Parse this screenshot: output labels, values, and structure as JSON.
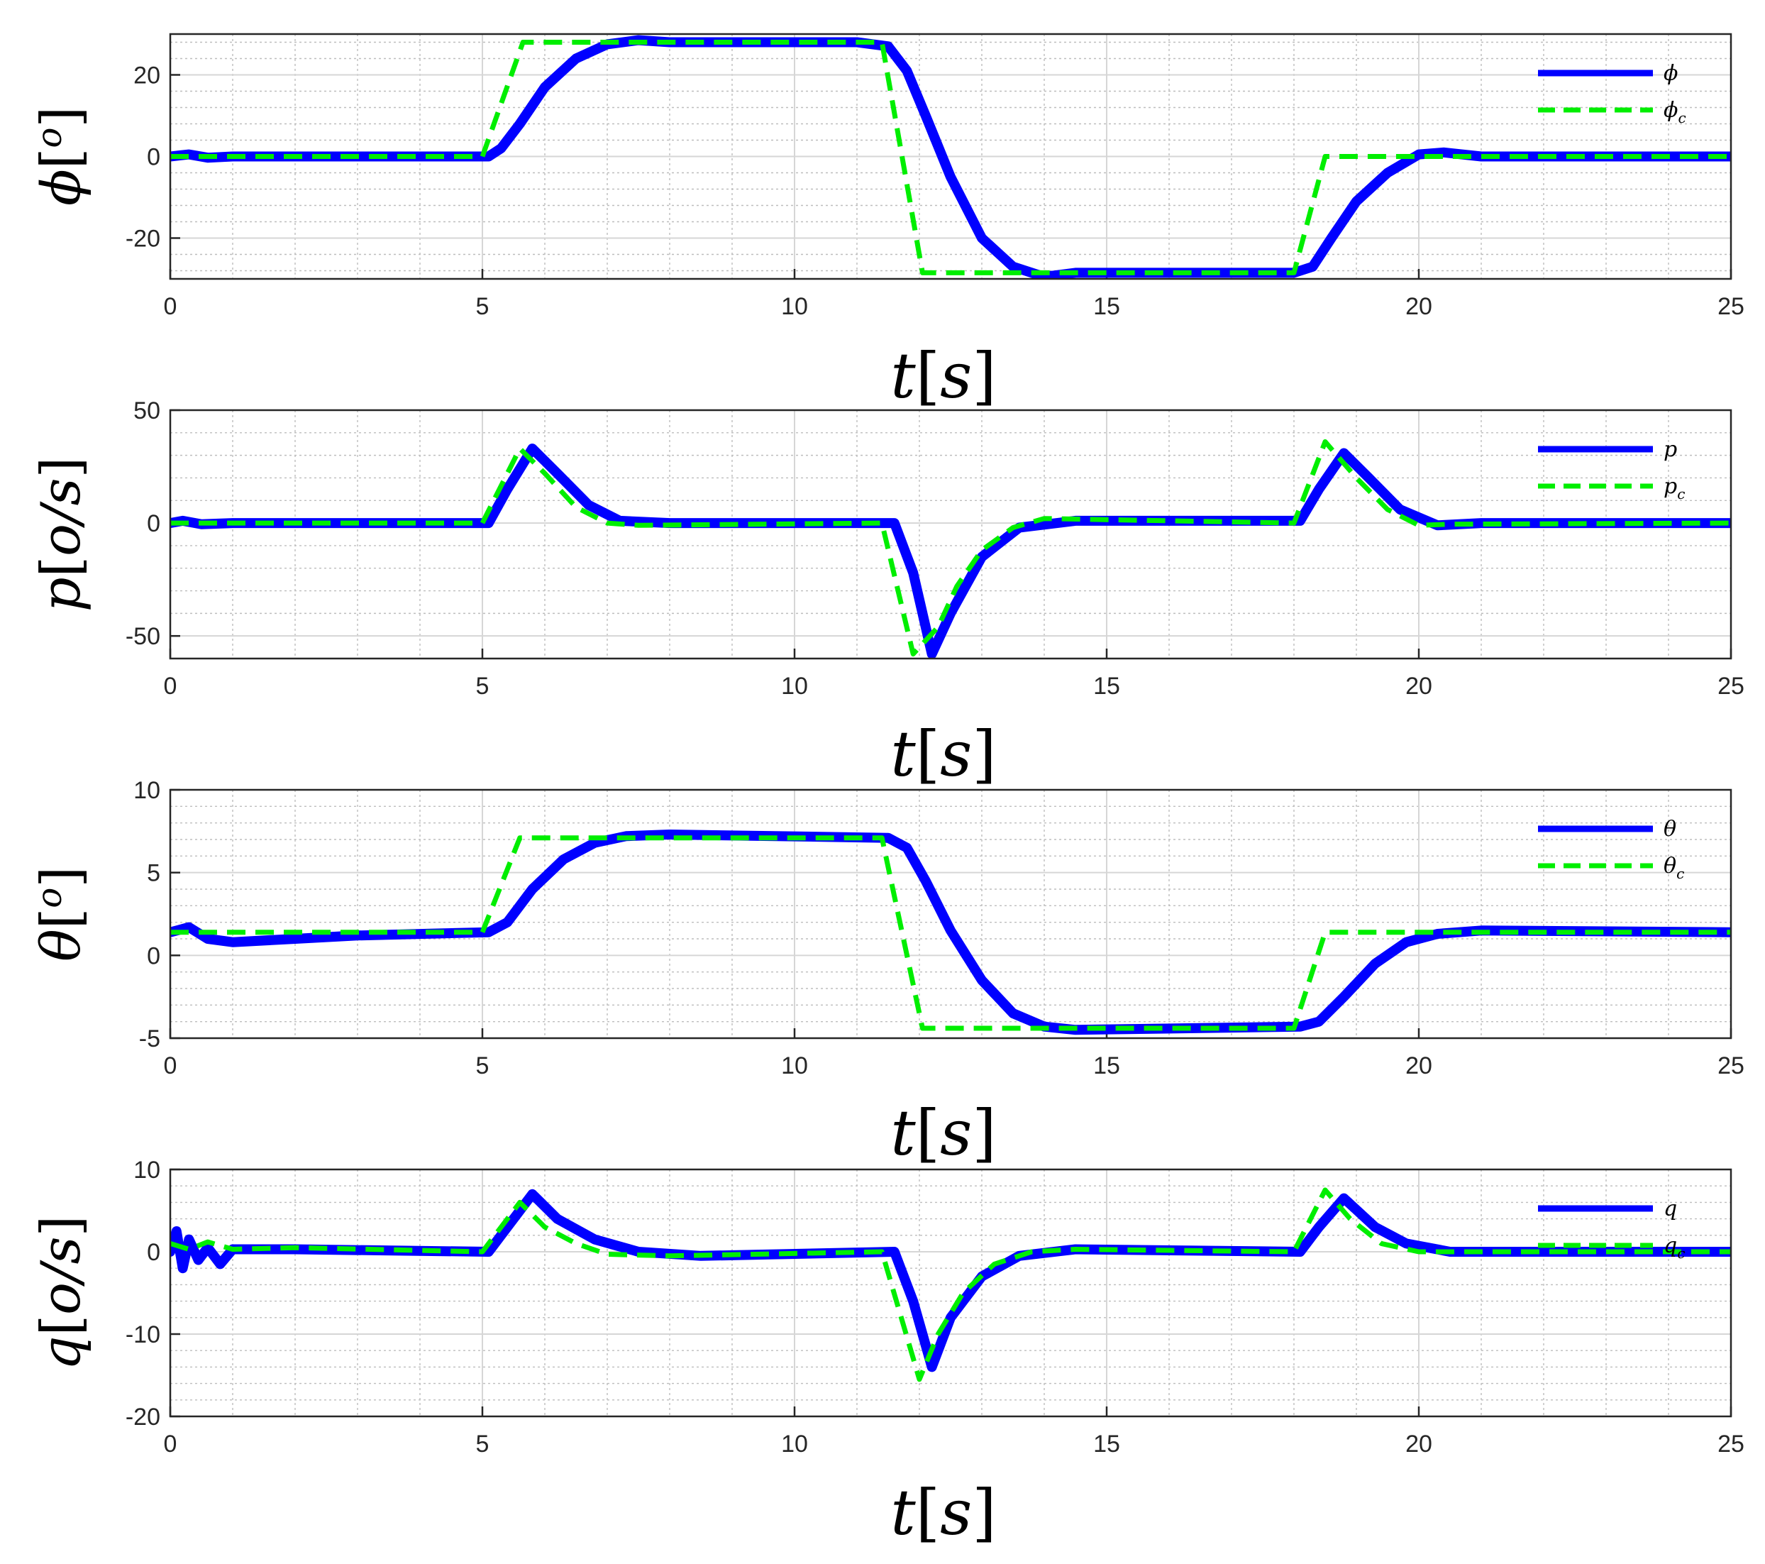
{
  "colors": {
    "measured": "#0000ff",
    "command": "#00ee00",
    "grid_major": "#d6d6d6",
    "grid_minor": "#bdbdbd",
    "axis": "#262626"
  },
  "chart_data": [
    {
      "type": "line",
      "xlabel": {
        "var": "t",
        "unit": "s"
      },
      "ylabel": {
        "var": "ϕ",
        "unit": "o"
      },
      "xlim": [
        0,
        25
      ],
      "ylim": [
        -30,
        30
      ],
      "xticks": [
        "0",
        "5",
        "10",
        "15",
        "20",
        "25"
      ],
      "yticks": [
        "-20",
        "0",
        "20"
      ],
      "ytick_values": [
        -20,
        0,
        20
      ],
      "grid": true,
      "minor_grid": true,
      "legend_position": "top-right",
      "series": [
        {
          "name": "ϕ",
          "sub": "",
          "style": "solid",
          "width": 14,
          "x": [
            0,
            0.3,
            0.6,
            1,
            5.1,
            5.3,
            5.6,
            6.0,
            6.5,
            7.0,
            7.5,
            8,
            11,
            11.5,
            11.8,
            12.1,
            12.5,
            13.0,
            13.5,
            14.0,
            14.5,
            18,
            18.3,
            18.6,
            19.0,
            19.5,
            20.0,
            20.4,
            21.0,
            25
          ],
          "y": [
            0,
            0.5,
            -0.3,
            0,
            0,
            2,
            8,
            17,
            24,
            27.5,
            28.5,
            28,
            28,
            27,
            21,
            10,
            -5,
            -20,
            -27,
            -29.5,
            -28.5,
            -28.5,
            -27,
            -20,
            -11,
            -4,
            0.5,
            1,
            0,
            0
          ]
        },
        {
          "name": "ϕ",
          "sub": "c",
          "style": "dashed",
          "width": 7,
          "x": [
            0,
            5,
            5.65,
            11.4,
            12.05,
            18.0,
            18.5,
            25
          ],
          "y": [
            0,
            0,
            28,
            28,
            -28.5,
            -28.5,
            0,
            0
          ]
        }
      ]
    },
    {
      "type": "line",
      "xlabel": {
        "var": "t",
        "unit": "s"
      },
      "ylabel": {
        "var": "p",
        "unit": "o/s"
      },
      "xlim": [
        0,
        25
      ],
      "ylim": [
        -60,
        50
      ],
      "xticks": [
        "0",
        "5",
        "10",
        "15",
        "20",
        "25"
      ],
      "yticks": [
        "-50",
        "0",
        "50"
      ],
      "ytick_values": [
        -50,
        0,
        50
      ],
      "grid": true,
      "minor_grid": true,
      "legend_position": "top-right",
      "series": [
        {
          "name": "p",
          "sub": "",
          "style": "solid",
          "width": 14,
          "x": [
            0,
            0.2,
            0.5,
            1,
            5.1,
            5.4,
            5.8,
            6.2,
            6.7,
            7.2,
            8.0,
            11.6,
            11.9,
            12.2,
            12.5,
            13.0,
            13.6,
            14.5,
            18.1,
            18.4,
            18.8,
            19.2,
            19.7,
            20.3,
            21,
            25
          ],
          "y": [
            0,
            1,
            -0.5,
            0,
            0,
            15,
            33,
            22,
            8,
            1,
            0,
            0,
            -22,
            -58,
            -40,
            -15,
            -2,
            1,
            1,
            15,
            31,
            20,
            6,
            -1,
            0,
            0
          ]
        },
        {
          "name": "p",
          "sub": "c",
          "style": "dashed",
          "width": 7,
          "x": [
            0,
            5,
            5.6,
            6.0,
            6.5,
            7.0,
            7.5,
            11.4,
            11.9,
            12.3,
            12.6,
            13.0,
            13.5,
            14.0,
            18.0,
            18.5,
            19.0,
            19.5,
            20.0,
            20.5,
            25
          ],
          "y": [
            0,
            0,
            33,
            22,
            7,
            0,
            -1,
            0,
            -58,
            -46,
            -28,
            -12,
            -2,
            2,
            0,
            36,
            20,
            6,
            -1,
            -0.5,
            0
          ]
        }
      ]
    },
    {
      "type": "line",
      "xlabel": {
        "var": "t",
        "unit": "s"
      },
      "ylabel": {
        "var": "θ",
        "unit": "o"
      },
      "xlim": [
        0,
        25
      ],
      "ylim": [
        -5,
        10
      ],
      "xticks": [
        "0",
        "5",
        "10",
        "15",
        "20",
        "25"
      ],
      "yticks": [
        "-5",
        "0",
        "5",
        "10"
      ],
      "ytick_values": [
        -5,
        0,
        5,
        10
      ],
      "grid": true,
      "minor_grid": true,
      "legend_position": "top-right",
      "series": [
        {
          "name": "θ",
          "sub": "",
          "style": "solid",
          "width": 14,
          "x": [
            0,
            0.3,
            0.6,
            1,
            2,
            3,
            5.1,
            5.4,
            5.8,
            6.3,
            6.8,
            7.3,
            8,
            11.5,
            11.8,
            12.1,
            12.5,
            13.0,
            13.5,
            14.0,
            14.5,
            18.1,
            18.4,
            18.8,
            19.3,
            19.8,
            20.3,
            21,
            25
          ],
          "y": [
            1.4,
            1.7,
            1.0,
            0.8,
            1.0,
            1.2,
            1.4,
            2,
            4,
            5.8,
            6.8,
            7.2,
            7.3,
            7.1,
            6.5,
            4.5,
            1.5,
            -1.5,
            -3.5,
            -4.3,
            -4.5,
            -4.3,
            -4,
            -2.5,
            -0.5,
            0.8,
            1.3,
            1.5,
            1.4
          ]
        },
        {
          "name": "θ",
          "sub": "c",
          "style": "dashed",
          "width": 7,
          "x": [
            0,
            5,
            5.6,
            11.4,
            12.05,
            18.0,
            18.5,
            25
          ],
          "y": [
            1.4,
            1.4,
            7.1,
            7.1,
            -4.4,
            -4.4,
            1.4,
            1.4
          ]
        }
      ]
    },
    {
      "type": "line",
      "xlabel": {
        "var": "t",
        "unit": "s"
      },
      "ylabel": {
        "var": "q",
        "unit": "o/s"
      },
      "xlim": [
        0,
        25
      ],
      "ylim": [
        -20,
        10
      ],
      "xticks": [
        "0",
        "5",
        "10",
        "15",
        "20",
        "25"
      ],
      "yticks": [
        "-20",
        "-10",
        "0",
        "10"
      ],
      "ytick_values": [
        -20,
        -10,
        0,
        10
      ],
      "grid": true,
      "minor_grid": true,
      "legend_position": "top-right",
      "series": [
        {
          "name": "q",
          "sub": "",
          "style": "solid",
          "width": 14,
          "x": [
            0,
            0.1,
            0.2,
            0.3,
            0.45,
            0.6,
            0.8,
            1.0,
            1.5,
            2,
            5.1,
            5.4,
            5.8,
            6.2,
            6.8,
            7.5,
            8.5,
            11.6,
            11.9,
            12.2,
            12.5,
            13.0,
            13.6,
            14.5,
            18.1,
            18.4,
            18.8,
            19.3,
            19.8,
            20.5,
            21,
            25
          ],
          "y": [
            0,
            2.5,
            -2,
            1.5,
            -1,
            0.5,
            -1.5,
            0.3,
            0.3,
            0.3,
            0,
            3,
            7,
            4,
            1.5,
            0,
            -0.5,
            0,
            -6,
            -14,
            -8,
            -3,
            -0.5,
            0.3,
            0,
            3,
            6.5,
            3,
            1,
            0,
            0,
            0
          ]
        },
        {
          "name": "q",
          "sub": "c",
          "style": "dashed",
          "width": 7,
          "x": [
            0,
            0.3,
            0.6,
            1,
            2,
            5,
            5.6,
            6.0,
            6.5,
            7.0,
            8.0,
            11.4,
            12.0,
            12.3,
            12.7,
            13.2,
            13.8,
            14.5,
            18.0,
            18.5,
            18.9,
            19.4,
            20.0,
            25
          ],
          "y": [
            1,
            0.3,
            1.2,
            0.3,
            0.5,
            0,
            6,
            3,
            1,
            -0.3,
            -0.5,
            0,
            -15.5,
            -10,
            -5,
            -1.5,
            0,
            0.3,
            0,
            7.5,
            4,
            1,
            0,
            0
          ]
        }
      ]
    }
  ]
}
